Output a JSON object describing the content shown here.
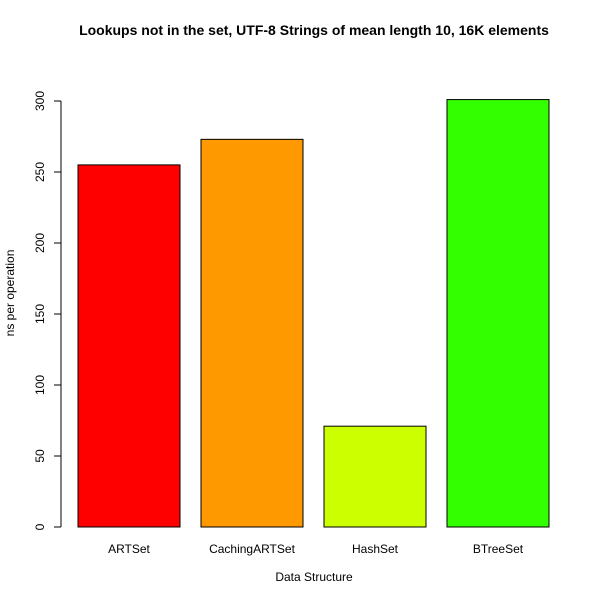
{
  "chart_data": {
    "type": "bar",
    "title": "Lookups not in the set, UTF-8 Strings of mean length 10, 16K elements",
    "xlabel": "Data Structure",
    "ylabel": "ns per operation",
    "categories": [
      "ARTSet",
      "CachingARTSet",
      "HashSet",
      "BTreeSet"
    ],
    "values": [
      255,
      273,
      71,
      301
    ],
    "colors": [
      "#FF0000",
      "#FF9900",
      "#CCFF00",
      "#33FF00"
    ],
    "ylim": [
      0,
      300
    ],
    "yticks": [
      0,
      50,
      100,
      150,
      200,
      250,
      300
    ],
    "ytick_labels": [
      "0",
      "50",
      "100",
      "150",
      "200",
      "250",
      "300"
    ],
    "grid": false,
    "legend": "none"
  }
}
